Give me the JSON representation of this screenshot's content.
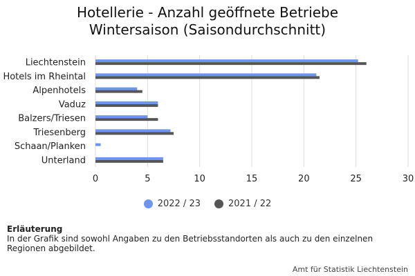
{
  "chart_data": {
    "type": "bar",
    "orientation": "horizontal",
    "title_line1": "Hotellerie - Anzahl geöffnete Betriebe",
    "title_line2": "Wintersaison (Saisondurchschnitt)",
    "categories": [
      "Liechtenstein",
      "Hotels im Rheintal",
      "Alpenhotels",
      "Vaduz",
      "Balzers/Triesen",
      "Triesenberg",
      "Schaan/Planken",
      "Unterland"
    ],
    "series": [
      {
        "name": "2022 / 23",
        "color": "#6b95f0",
        "values": [
          25.2,
          21.2,
          4.0,
          6.0,
          5.0,
          7.2,
          0.5,
          6.5
        ]
      },
      {
        "name": "2021 / 22",
        "color": "#555555",
        "values": [
          26.0,
          21.5,
          4.5,
          6.0,
          6.0,
          7.5,
          0.0,
          6.5
        ]
      }
    ],
    "xlim": [
      0,
      30
    ],
    "xticks": [
      0,
      5,
      10,
      15,
      20,
      25,
      30
    ],
    "grid": true,
    "legend_position": "bottom"
  },
  "note": {
    "heading": "Erläuterung",
    "text": "In der Grafik sind sowohl Angaben zu den Betriebsstandorten als auch zu den einzelnen Regionen abgebildet."
  },
  "source": "Amt für Statistik Liechtenstein"
}
